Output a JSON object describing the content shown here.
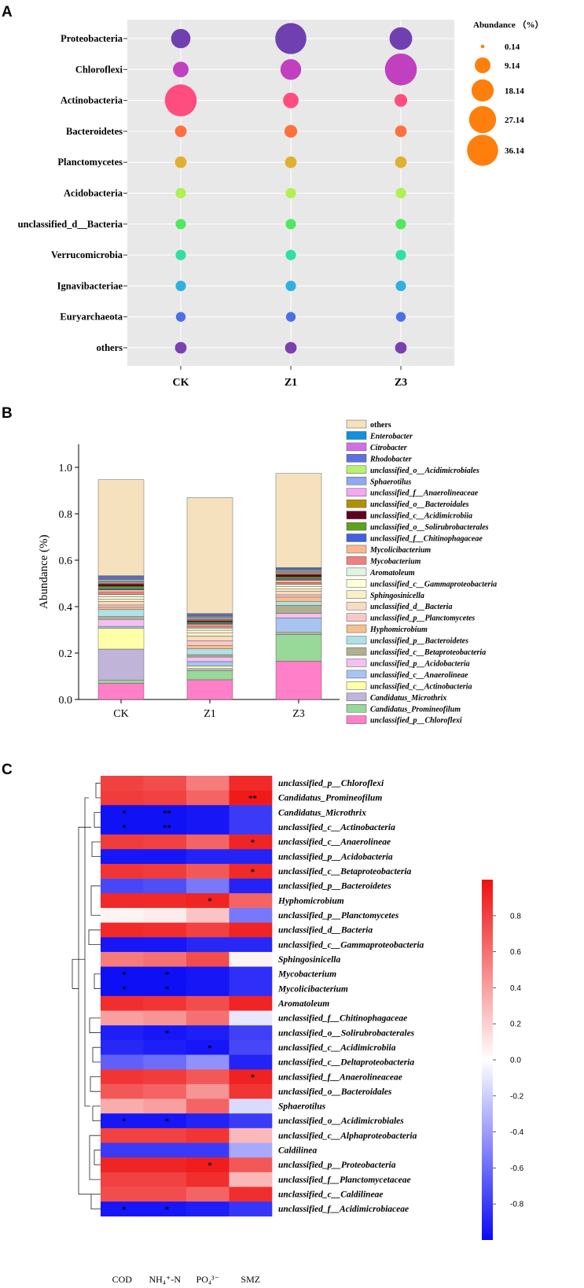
{
  "panel_labels": {
    "a": "A",
    "b": "B",
    "c": "C"
  },
  "chart_data": [
    {
      "type": "scatter",
      "subtype": "bubble",
      "panel": "A",
      "columns": [
        "CK",
        "Z1",
        "Z3"
      ],
      "rows": [
        {
          "name": "Proteobacteria",
          "color": "#7040B0",
          "values": [
            14.0,
            36.0,
            19.0
          ]
        },
        {
          "name": "Chloroflexi",
          "color": "#C040C0",
          "values": [
            9.0,
            16.0,
            38.0
          ]
        },
        {
          "name": "Actinobacteria",
          "color": "#FF4D80",
          "values": [
            38.0,
            9.0,
            6.0
          ]
        },
        {
          "name": "Bacteroidetes",
          "color": "#FF7040",
          "values": [
            5.0,
            6.0,
            5.0
          ]
        },
        {
          "name": "Planctomycetes",
          "color": "#E0B030",
          "values": [
            5.0,
            5.0,
            5.0
          ]
        },
        {
          "name": "Acidobacteria",
          "color": "#B0F050",
          "values": [
            4.0,
            4.0,
            4.0
          ]
        },
        {
          "name": "unclassified_d__Bacteria",
          "color": "#50E860",
          "values": [
            4.0,
            4.0,
            4.0
          ]
        },
        {
          "name": "Verrucomicrobia",
          "color": "#30E0A0",
          "values": [
            4.0,
            4.0,
            4.0
          ]
        },
        {
          "name": "Ignavibacteriae",
          "color": "#30B0E0",
          "values": [
            4.0,
            4.0,
            4.0
          ]
        },
        {
          "name": "Euryarchaeota",
          "color": "#4A70E8",
          "values": [
            3.5,
            3.5,
            3.5
          ]
        },
        {
          "name": "others",
          "color": "#7A40B0",
          "values": [
            5.0,
            5.0,
            5.0
          ]
        }
      ],
      "legend": {
        "title": "Abundance （%）",
        "color": "#FF7F0E",
        "entries": [
          {
            "label": "0.14",
            "value": 0.14
          },
          {
            "label": "9.14",
            "value": 9.14
          },
          {
            "label": "18.14",
            "value": 18.14
          },
          {
            "label": "27.14",
            "value": 27.14
          },
          {
            "label": "36.14",
            "value": 36.14
          }
        ]
      }
    },
    {
      "type": "bar",
      "subtype": "stacked",
      "panel": "B",
      "categories": [
        "CK",
        "Z1",
        "Z3"
      ],
      "ylabel": "Abundance (%)",
      "ylim": [
        0,
        1.1
      ],
      "yticks": [
        "0.0",
        "0.2",
        "0.4",
        "0.6",
        "0.8",
        "1.0"
      ],
      "series": [
        {
          "name": "unclassified_p__Chloroflexi",
          "color": "#FF7FC8",
          "values": [
            0.07,
            0.085,
            0.165
          ]
        },
        {
          "name": "Candidatus_Promineofilum",
          "color": "#98D898",
          "values": [
            0.012,
            0.04,
            0.115
          ]
        },
        {
          "name": "Candidatus_Microthrix",
          "color": "#C0B4D8",
          "values": [
            0.135,
            0.008,
            0.006
          ]
        },
        {
          "name": "unclassified_c__Actinobacteria",
          "color": "#FFFFA8",
          "values": [
            0.09,
            0.01,
            0.005
          ]
        },
        {
          "name": "unclassified_c__Anaerolineae",
          "color": "#A8C4F0",
          "values": [
            0.008,
            0.02,
            0.06
          ]
        },
        {
          "name": "unclassified_p__Acidobacteria",
          "color": "#F4C0F0",
          "values": [
            0.03,
            0.02,
            0.02
          ]
        },
        {
          "name": "unclassified_c__Betaproteobacteria",
          "color": "#B0B090",
          "values": [
            0.012,
            0.01,
            0.035
          ]
        },
        {
          "name": "unclassified_p__Bacteroidetes",
          "color": "#B0E0E8",
          "values": [
            0.03,
            0.025,
            0.015
          ]
        },
        {
          "name": "Hyphomicrobium",
          "color": "#F4C090",
          "values": [
            0.01,
            0.015,
            0.02
          ]
        },
        {
          "name": "unclassified_p__Planctomycetes",
          "color": "#F8C8C8",
          "values": [
            0.01,
            0.02,
            0.01
          ]
        },
        {
          "name": "unclassified_d__Bacteria",
          "color": "#F8DCC0",
          "values": [
            0.015,
            0.02,
            0.015
          ]
        },
        {
          "name": "Sphingosinicella",
          "color": "#FAF0C8",
          "values": [
            0.01,
            0.015,
            0.01
          ]
        },
        {
          "name": "unclassified_c__Gammaproteobacteria",
          "color": "#FFFFD8",
          "values": [
            0.01,
            0.01,
            0.01
          ]
        },
        {
          "name": "Aromatoleum",
          "color": "#E0F4E0",
          "values": [
            0.01,
            0.01,
            0.01
          ]
        },
        {
          "name": "Mycobacterium",
          "color": "#F08080",
          "values": [
            0.01,
            0.008,
            0.008
          ]
        },
        {
          "name": "Mycolicibacterium",
          "color": "#F8B890",
          "values": [
            0.01,
            0.008,
            0.01
          ]
        },
        {
          "name": "unclassified_f__Chitinophagaceae",
          "color": "#4060E0",
          "values": [
            0.005,
            0.005,
            0.006
          ]
        },
        {
          "name": "unclassified_o__Solirubrobacterales",
          "color": "#60A020",
          "values": [
            0.01,
            0.005,
            0.008
          ]
        },
        {
          "name": "unclassified_c__Acidimicrobiia",
          "color": "#600020",
          "values": [
            0.01,
            0.005,
            0.01
          ]
        },
        {
          "name": "unclassified_o__Bacteroidales",
          "color": "#B09000",
          "values": [
            0.005,
            0.005,
            0.005
          ]
        },
        {
          "name": "unclassified_f__Anaerolineaceae",
          "color": "#F4A8F0",
          "values": [
            0.005,
            0.005,
            0.005
          ]
        },
        {
          "name": "Sphaerotilus",
          "color": "#90A8F0",
          "values": [
            0.005,
            0.005,
            0.004
          ]
        },
        {
          "name": "unclassified_o__Acidimicrobiales",
          "color": "#B8F070",
          "values": [
            0.005,
            0.004,
            0.004
          ]
        },
        {
          "name": "Rhodobacter",
          "color": "#6070E0",
          "values": [
            0.008,
            0.004,
            0.004
          ]
        },
        {
          "name": "Citrobacter",
          "color": "#D070E8",
          "values": [
            0.004,
            0.004,
            0.004
          ]
        },
        {
          "name": "Enterobacter",
          "color": "#1090E0",
          "values": [
            0.004,
            0.004,
            0.004
          ]
        },
        {
          "name": "others",
          "color": "#F5E1BE",
          "values": [
            0.414,
            0.5,
            0.406
          ]
        }
      ]
    },
    {
      "type": "heatmap",
      "panel": "C",
      "columns": [
        "COD",
        "NH₄⁺-N",
        "PO₄³⁻",
        "SMZ"
      ],
      "colorbar": {
        "min": -1,
        "max": 1,
        "ticks": [
          "0.8",
          "0.6",
          "0.4",
          "0.2",
          "0.0",
          "-0.2",
          "-0.4",
          "-0.6",
          "-0.8"
        ]
      },
      "rows": [
        {
          "name": "unclassified_p__Chloroflexi",
          "values": [
            0.8,
            0.75,
            0.55,
            0.9
          ],
          "stars": [
            "",
            "",
            "",
            ""
          ]
        },
        {
          "name": "Candidatus_Promineofilum",
          "values": [
            0.82,
            0.8,
            0.65,
            0.96
          ],
          "stars": [
            "",
            "",
            "",
            "**"
          ]
        },
        {
          "name": "Candidatus_Microthrix",
          "values": [
            -0.97,
            -0.97,
            -0.95,
            -0.8
          ],
          "stars": [
            "*",
            "**",
            "",
            ""
          ]
        },
        {
          "name": "unclassified_c__Actinobacteria",
          "values": [
            -0.97,
            -0.97,
            -0.95,
            -0.8
          ],
          "stars": [
            "*",
            "**",
            "",
            ""
          ]
        },
        {
          "name": "unclassified_c__Anaerolineae",
          "values": [
            0.82,
            0.8,
            0.65,
            0.92
          ],
          "stars": [
            "",
            "",
            "",
            "*"
          ]
        },
        {
          "name": "unclassified_p__Acidobacteria",
          "values": [
            -0.95,
            -0.95,
            -0.9,
            -0.9
          ],
          "stars": [
            "",
            "",
            "",
            ""
          ]
        },
        {
          "name": "unclassified_c__Betaproteobacteria",
          "values": [
            0.85,
            0.82,
            0.7,
            0.9
          ],
          "stars": [
            "",
            "",
            "",
            "*"
          ]
        },
        {
          "name": "unclassified_p__Bacteroidetes",
          "values": [
            -0.75,
            -0.72,
            -0.55,
            -0.9
          ],
          "stars": [
            "",
            "",
            "",
            ""
          ]
        },
        {
          "name": "Hyphomicrobium",
          "values": [
            0.9,
            0.9,
            0.92,
            0.65
          ],
          "stars": [
            "",
            "",
            "*",
            ""
          ]
        },
        {
          "name": "unclassified_p__Planctomycetes",
          "values": [
            0.05,
            0.08,
            0.25,
            -0.55
          ],
          "stars": [
            "",
            "",
            "",
            ""
          ]
        },
        {
          "name": "unclassified_d__Bacteria",
          "values": [
            0.9,
            0.88,
            0.8,
            0.92
          ],
          "stars": [
            "",
            "",
            "",
            ""
          ]
        },
        {
          "name": "unclassified_c__Gammaproteobacteria",
          "values": [
            -0.95,
            -0.95,
            -0.88,
            -0.88
          ],
          "stars": [
            "",
            "",
            "",
            ""
          ]
        },
        {
          "name": "Sphingosinicella",
          "values": [
            0.55,
            0.6,
            0.75,
            0.05
          ],
          "stars": [
            "",
            "",
            "",
            ""
          ]
        },
        {
          "name": "Mycobacterium",
          "values": [
            -0.98,
            -0.98,
            -0.95,
            -0.85
          ],
          "stars": [
            "*",
            "*",
            "",
            ""
          ]
        },
        {
          "name": "Mycolicibacterium",
          "values": [
            -0.98,
            -0.98,
            -0.95,
            -0.85
          ],
          "stars": [
            "*",
            "*",
            "",
            ""
          ]
        },
        {
          "name": "Aromatoleum",
          "values": [
            0.88,
            0.85,
            0.75,
            0.92
          ],
          "stars": [
            "",
            "",
            "",
            ""
          ]
        },
        {
          "name": "unclassified_f__Chitinophagaceae",
          "values": [
            0.4,
            0.45,
            0.6,
            -0.1
          ],
          "stars": [
            "",
            "",
            "",
            ""
          ]
        },
        {
          "name": "unclassified_o__Solirubrobacterales",
          "values": [
            -0.92,
            -0.95,
            -0.92,
            -0.78
          ],
          "stars": [
            "",
            "*",
            "",
            ""
          ]
        },
        {
          "name": "unclassified_c__Acidimicrobiia",
          "values": [
            -0.88,
            -0.92,
            -0.95,
            -0.75
          ],
          "stars": [
            "",
            "",
            "*",
            ""
          ]
        },
        {
          "name": "unclassified_c__Deltaproteobacteria",
          "values": [
            -0.65,
            -0.6,
            -0.45,
            -0.9
          ],
          "stars": [
            "",
            "",
            "",
            ""
          ]
        },
        {
          "name": "unclassified_f__Anaerolineaceae",
          "values": [
            0.85,
            0.82,
            0.7,
            0.93
          ],
          "stars": [
            "",
            "",
            "",
            "*"
          ]
        },
        {
          "name": "unclassified_o__Bacteroidales",
          "values": [
            0.7,
            0.65,
            0.45,
            0.85
          ],
          "stars": [
            "",
            "",
            "",
            ""
          ]
        },
        {
          "name": "Sphaerotilus",
          "values": [
            0.35,
            0.4,
            0.65,
            -0.15
          ],
          "stars": [
            "",
            "",
            "",
            ""
          ]
        },
        {
          "name": "unclassified_o__Acidimicrobiales",
          "values": [
            -0.95,
            -0.95,
            -0.9,
            -0.8
          ],
          "stars": [
            "*",
            "*",
            "",
            ""
          ]
        },
        {
          "name": "unclassified_c__Alphaproteobacteria",
          "values": [
            0.8,
            0.8,
            0.85,
            0.3
          ],
          "stars": [
            "",
            "",
            "",
            ""
          ]
        },
        {
          "name": "Caldilinea",
          "values": [
            -0.8,
            -0.8,
            -0.8,
            -0.35
          ],
          "stars": [
            "",
            "",
            "",
            ""
          ]
        },
        {
          "name": "unclassified_p__Proteobacteria",
          "values": [
            0.92,
            0.92,
            0.95,
            0.7
          ],
          "stars": [
            "",
            "",
            "*",
            ""
          ]
        },
        {
          "name": "unclassified_f__Planctomycetaceae",
          "values": [
            0.8,
            0.8,
            0.88,
            0.3
          ],
          "stars": [
            "",
            "",
            "",
            ""
          ]
        },
        {
          "name": "unclassified_c__Caldilineae",
          "values": [
            0.75,
            0.75,
            0.65,
            0.88
          ],
          "stars": [
            "",
            "",
            "",
            ""
          ]
        },
        {
          "name": "unclassified_f__Acidimicrobiaceae",
          "values": [
            -0.95,
            -0.95,
            -0.92,
            -0.82
          ],
          "stars": [
            "*",
            "*",
            "",
            ""
          ]
        }
      ]
    }
  ]
}
